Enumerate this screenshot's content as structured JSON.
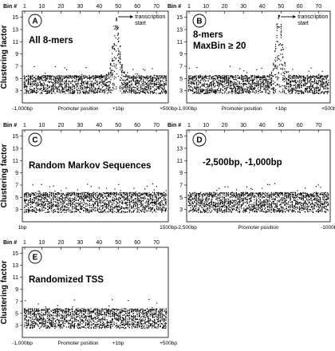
{
  "chart_data": [
    {
      "panel": "A",
      "type": "scatter",
      "title": "All 8-mers",
      "ylabel": "Clustering factor",
      "xlabel": "Promoter position",
      "bin_label": "Bin #",
      "bin_ticks": [
        "1",
        "10",
        "20",
        "30",
        "40",
        "50",
        "60",
        "70"
      ],
      "x_tick_labels": [
        "-1,000bp",
        "+1bp",
        "+500bp"
      ],
      "y_ticks": [
        "3",
        "5",
        "7",
        "9",
        "11",
        "13",
        "15"
      ],
      "ylim": [
        1,
        16
      ],
      "bins": 75,
      "annotation": "transcription start",
      "annotation_bin": 50,
      "baseline_range": [
        2.5,
        5.5
      ],
      "peak": {
        "center_bin": 49,
        "max": 15
      }
    },
    {
      "panel": "B",
      "type": "scatter",
      "title": "8-mers MaxBin ≥ 20",
      "ylabel": "",
      "xlabel": "Promoter position",
      "bin_label": "Bin #",
      "bin_ticks": [
        "1",
        "10",
        "20",
        "30",
        "40",
        "50",
        "60",
        "70"
      ],
      "x_tick_labels": [
        "-1,000bp",
        "+1bp",
        "+500bp"
      ],
      "y_ticks": [
        "3",
        "5",
        "7",
        "9",
        "11",
        "13",
        "15"
      ],
      "ylim": [
        1,
        16
      ],
      "bins": 75,
      "annotation": "transcription start",
      "annotation_bin": 50,
      "baseline_range": [
        2.5,
        5.5
      ],
      "peak": {
        "center_bin": 49,
        "max": 15.5
      }
    },
    {
      "panel": "C",
      "type": "scatter",
      "title": "Random Markov Sequences",
      "ylabel": "Clustering factor",
      "xlabel": "",
      "bin_label": "Bin #",
      "bin_ticks": [
        "1",
        "10",
        "20",
        "30",
        "40",
        "50",
        "60",
        "70"
      ],
      "x_tick_labels": [
        "1bp",
        "1500bp"
      ],
      "y_ticks": [
        "3",
        "5",
        "7",
        "9",
        "11",
        "13",
        "15"
      ],
      "ylim": [
        1,
        16
      ],
      "bins": 75,
      "baseline_range": [
        2.5,
        5.8
      ],
      "peak": null
    },
    {
      "panel": "D",
      "type": "scatter",
      "title": "-2,500bp, -1,000bp",
      "ylabel": "",
      "xlabel": "Promoter position",
      "bin_label": "Bin #",
      "bin_ticks": [
        "1",
        "10",
        "20",
        "30",
        "40",
        "50",
        "60",
        "70"
      ],
      "x_tick_labels": [
        "-2,500bp",
        "-1000bp"
      ],
      "y_ticks": [
        "3",
        "5",
        "7",
        "9",
        "11",
        "13",
        "15"
      ],
      "ylim": [
        1,
        16
      ],
      "bins": 75,
      "baseline_range": [
        2.5,
        5.8
      ],
      "peak": null
    },
    {
      "panel": "E",
      "type": "scatter",
      "title": "Randomized TSS",
      "ylabel": "Clustering factor",
      "xlabel": "Promoter position",
      "bin_label": "Bin #",
      "bin_ticks": [
        "1",
        "10",
        "20",
        "30",
        "40",
        "50",
        "60",
        "70"
      ],
      "x_tick_labels": [
        "-1,000bp",
        "+1bp",
        "+500bp"
      ],
      "y_ticks": [
        "3",
        "5",
        "7",
        "9",
        "11",
        "13",
        "15"
      ],
      "ylim": [
        1,
        16
      ],
      "bins": 75,
      "baseline_range": [
        2.5,
        5.8
      ],
      "peak": null
    }
  ]
}
